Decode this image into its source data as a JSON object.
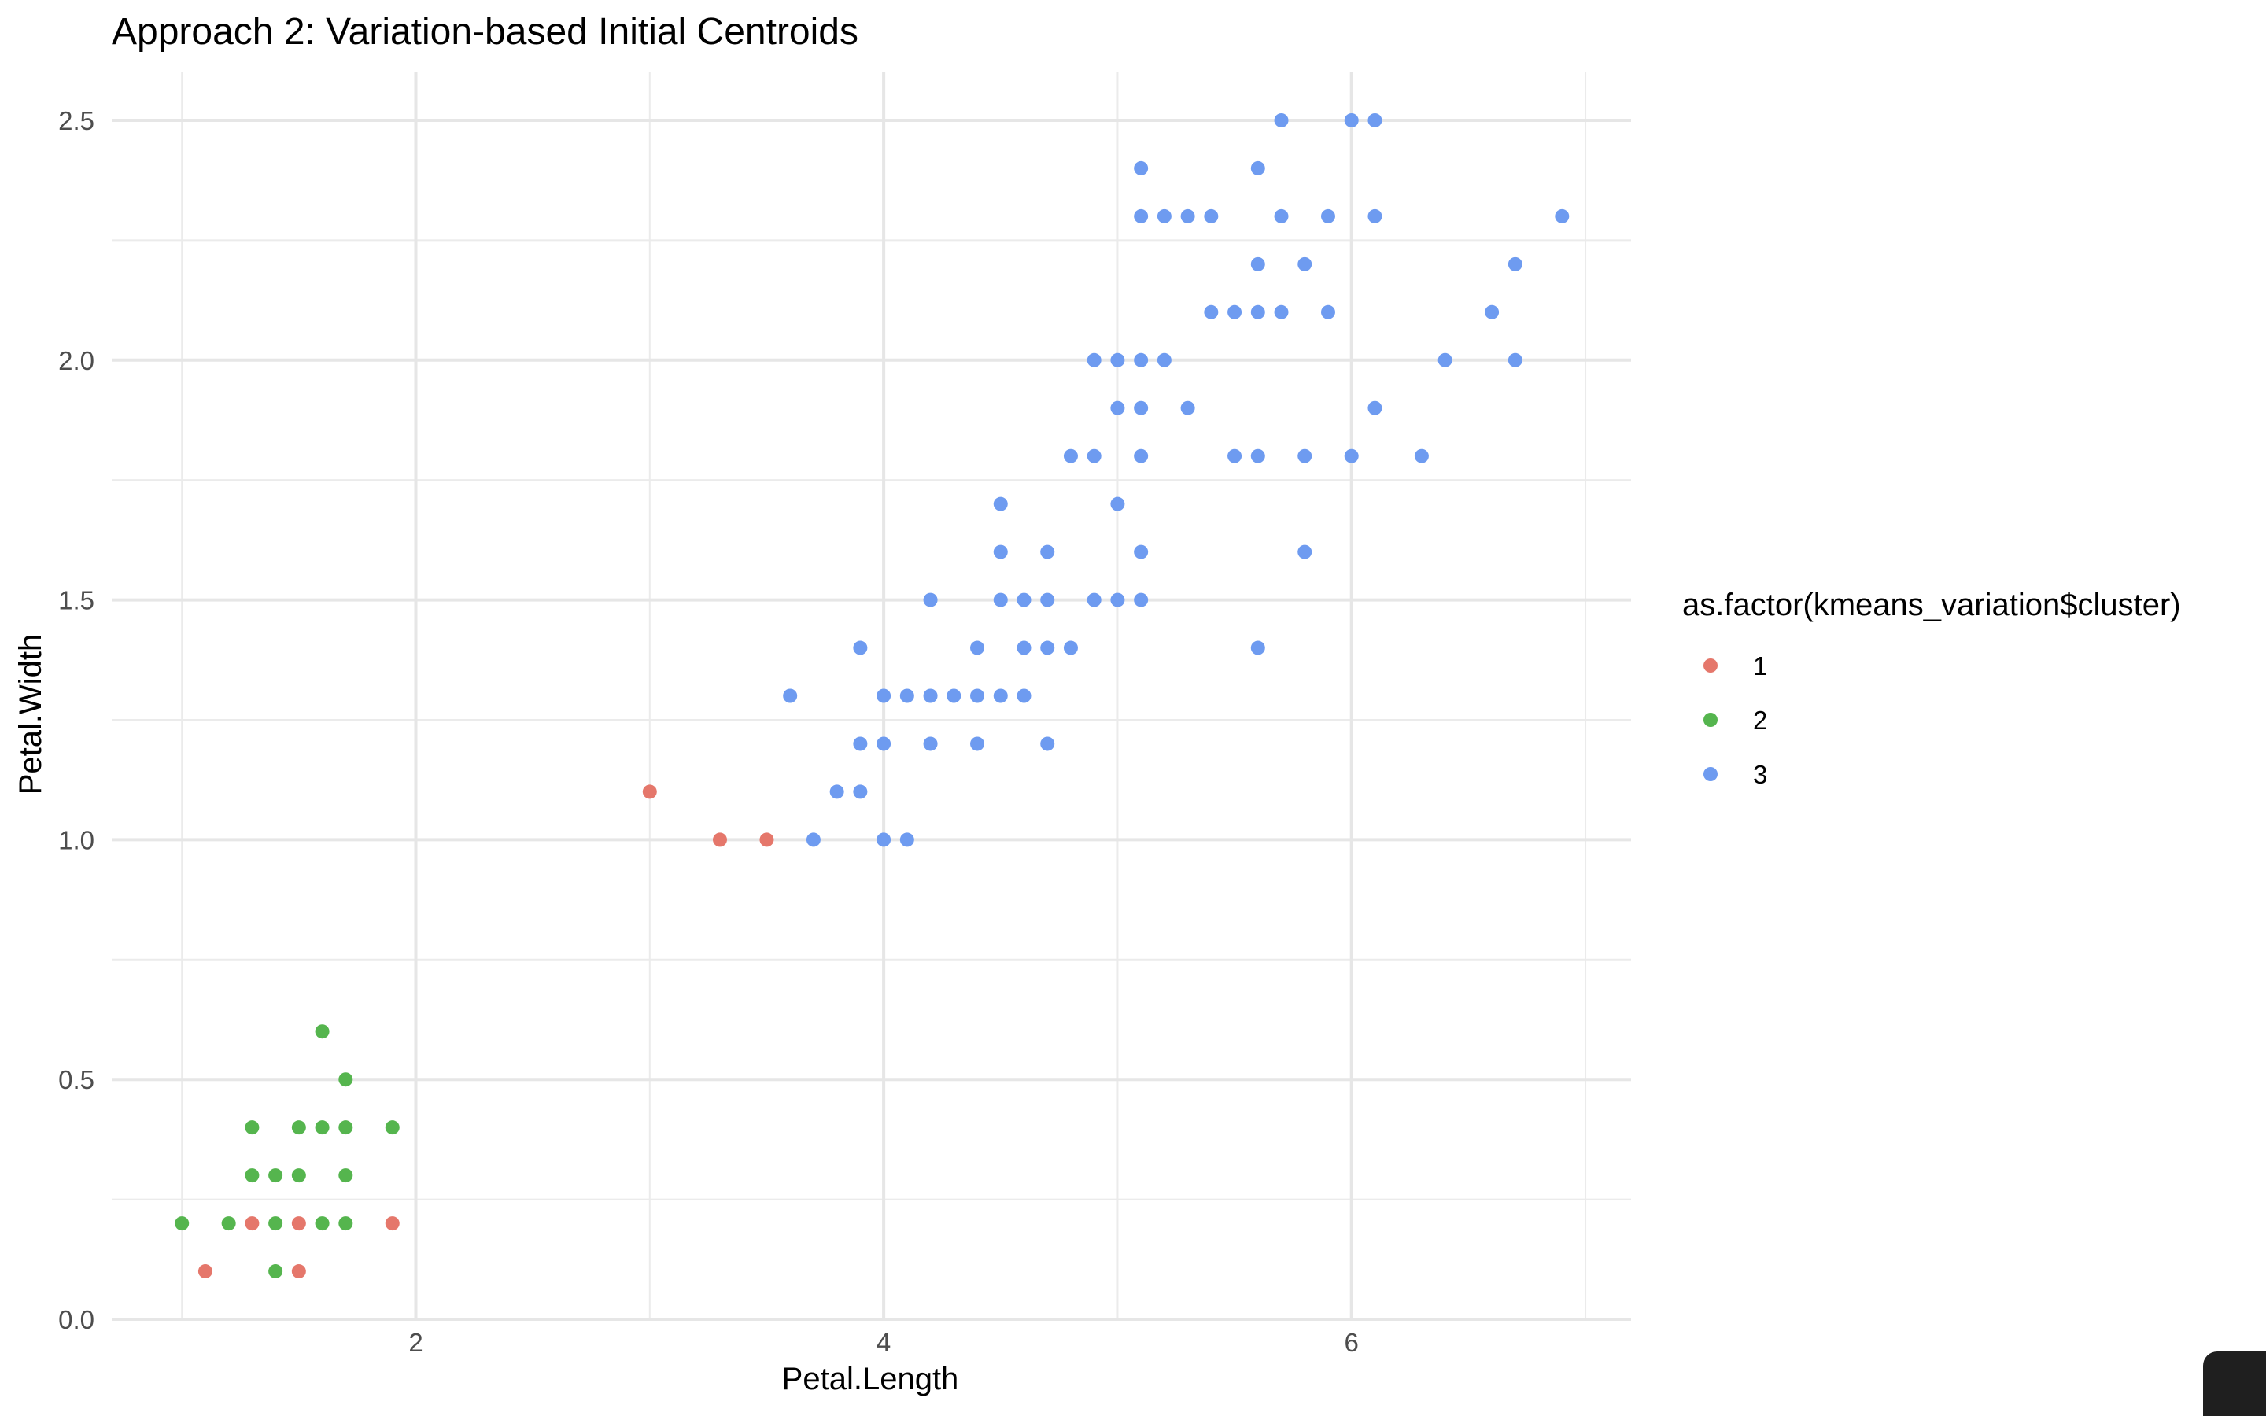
{
  "chart_data": {
    "type": "scatter",
    "title": "Approach 2: Variation-based Initial Centroids",
    "xlabel": "Petal.Length",
    "ylabel": "Petal.Width",
    "xlim": [
      0.7,
      7.195
    ],
    "ylim": [
      0,
      2.6
    ],
    "x_ticks": [
      2,
      4,
      6
    ],
    "y_ticks": [
      0,
      0.5,
      1,
      1.5,
      2,
      2.5
    ],
    "x_tick_labels": [
      "2",
      "4",
      "6"
    ],
    "y_tick_labels": [
      "0.0",
      "0.5",
      "1.0",
      "1.5",
      "2.0",
      "2.5"
    ],
    "grid": true,
    "legend": {
      "title": "as.factor(kmeans_variation$cluster)",
      "position": "right"
    },
    "series": [
      {
        "name": "1",
        "color": "#E5776B",
        "points": [
          [
            1.1,
            0.1
          ],
          [
            1.5,
            0.1
          ],
          [
            1.3,
            0.2
          ],
          [
            1.5,
            0.2
          ],
          [
            1.9,
            0.2
          ],
          [
            3.0,
            1.1
          ],
          [
            3.3,
            1.0
          ],
          [
            3.5,
            1.0
          ]
        ]
      },
      {
        "name": "2",
        "color": "#55B54E",
        "points": [
          [
            1.0,
            0.2
          ],
          [
            1.2,
            0.2
          ],
          [
            1.4,
            0.2
          ],
          [
            1.6,
            0.2
          ],
          [
            1.7,
            0.2
          ],
          [
            1.4,
            0.1
          ],
          [
            1.3,
            0.3
          ],
          [
            1.4,
            0.3
          ],
          [
            1.5,
            0.3
          ],
          [
            1.7,
            0.3
          ],
          [
            1.3,
            0.4
          ],
          [
            1.5,
            0.4
          ],
          [
            1.6,
            0.4
          ],
          [
            1.7,
            0.4
          ],
          [
            1.9,
            0.4
          ],
          [
            1.7,
            0.5
          ],
          [
            1.6,
            0.6
          ]
        ]
      },
      {
        "name": "3",
        "color": "#6E9BF0",
        "points": [
          [
            3.7,
            1.0
          ],
          [
            4.0,
            1.0
          ],
          [
            4.1,
            1.0
          ],
          [
            3.8,
            1.1
          ],
          [
            3.9,
            1.1
          ],
          [
            3.9,
            1.2
          ],
          [
            4.0,
            1.2
          ],
          [
            4.2,
            1.2
          ],
          [
            4.4,
            1.2
          ],
          [
            4.7,
            1.2
          ],
          [
            3.6,
            1.3
          ],
          [
            4.0,
            1.3
          ],
          [
            4.1,
            1.3
          ],
          [
            4.2,
            1.3
          ],
          [
            4.3,
            1.3
          ],
          [
            4.4,
            1.3
          ],
          [
            4.5,
            1.3
          ],
          [
            4.6,
            1.3
          ],
          [
            3.9,
            1.4
          ],
          [
            4.4,
            1.4
          ],
          [
            4.6,
            1.4
          ],
          [
            4.7,
            1.4
          ],
          [
            4.8,
            1.4
          ],
          [
            5.6,
            1.4
          ],
          [
            4.2,
            1.5
          ],
          [
            4.5,
            1.5
          ],
          [
            4.6,
            1.5
          ],
          [
            4.7,
            1.5
          ],
          [
            4.9,
            1.5
          ],
          [
            5.0,
            1.5
          ],
          [
            5.1,
            1.5
          ],
          [
            4.5,
            1.6
          ],
          [
            4.7,
            1.6
          ],
          [
            5.1,
            1.6
          ],
          [
            5.8,
            1.6
          ],
          [
            4.5,
            1.7
          ],
          [
            5.0,
            1.7
          ],
          [
            4.8,
            1.8
          ],
          [
            4.9,
            1.8
          ],
          [
            5.1,
            1.8
          ],
          [
            5.5,
            1.8
          ],
          [
            5.6,
            1.8
          ],
          [
            5.8,
            1.8
          ],
          [
            6.0,
            1.8
          ],
          [
            6.3,
            1.8
          ],
          [
            5.0,
            1.9
          ],
          [
            5.1,
            1.9
          ],
          [
            5.3,
            1.9
          ],
          [
            6.1,
            1.9
          ],
          [
            4.9,
            2.0
          ],
          [
            5.0,
            2.0
          ],
          [
            5.1,
            2.0
          ],
          [
            5.2,
            2.0
          ],
          [
            6.4,
            2.0
          ],
          [
            6.7,
            2.0
          ],
          [
            5.4,
            2.1
          ],
          [
            5.5,
            2.1
          ],
          [
            5.6,
            2.1
          ],
          [
            5.7,
            2.1
          ],
          [
            5.9,
            2.1
          ],
          [
            6.6,
            2.1
          ],
          [
            5.6,
            2.2
          ],
          [
            5.8,
            2.2
          ],
          [
            6.7,
            2.2
          ],
          [
            5.1,
            2.3
          ],
          [
            5.2,
            2.3
          ],
          [
            5.3,
            2.3
          ],
          [
            5.4,
            2.3
          ],
          [
            5.7,
            2.3
          ],
          [
            5.9,
            2.3
          ],
          [
            6.1,
            2.3
          ],
          [
            6.9,
            2.3
          ],
          [
            5.1,
            2.4
          ],
          [
            5.6,
            2.4
          ],
          [
            5.7,
            2.5
          ],
          [
            6.0,
            2.5
          ],
          [
            6.1,
            2.5
          ]
        ]
      }
    ]
  }
}
